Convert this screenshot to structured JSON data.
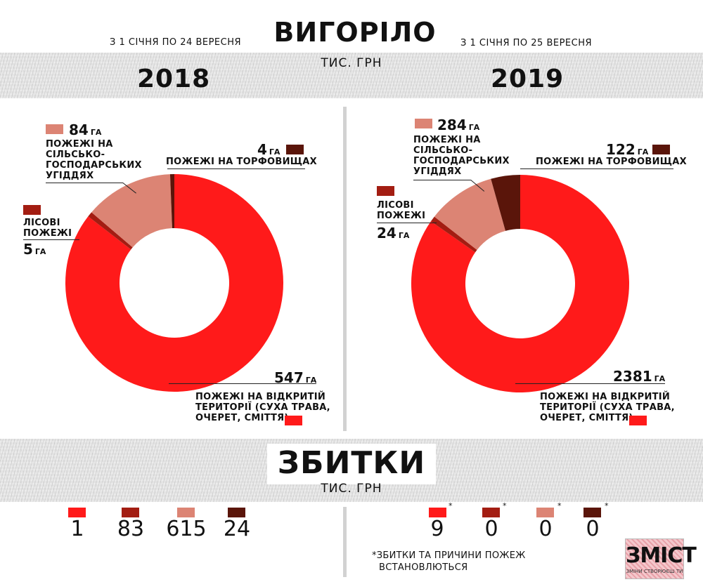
{
  "header": {
    "title": "ВИГОРІЛО",
    "period_2018": "З 1 СІЧНЯ ПО 24 ВЕРЕСНЯ",
    "period_2019": "З 1 СІЧНЯ ПО 25 ВЕРЕСНЯ",
    "unit": "ТИС. ГРН"
  },
  "colors": {
    "open": "#ff1a1a",
    "forest": "#a31d12",
    "agri": "#dc8474",
    "peat": "#5a150a"
  },
  "chart_data": [
    {
      "type": "pie",
      "title": "2018",
      "donut": true,
      "series": [
        {
          "name": "ПОЖЕЖІ НА ВІДКРИТІЙ ТЕРИТОРІЇ (СУХА ТРАВА, ОЧЕРЕТ, СМІТТЯ)",
          "value": 547,
          "unit": "ГА",
          "color": "#ff1a1a"
        },
        {
          "name": "ЛІСОВІ ПОЖЕЖІ",
          "value": 5,
          "unit": "ГА",
          "color": "#a31d12"
        },
        {
          "name": "ПОЖЕЖІ НА СІЛЬСЬКО-ГОСПОДАРСЬКИХ УГІДДЯХ",
          "value": 84,
          "unit": "ГА",
          "color": "#dc8474"
        },
        {
          "name": "ПОЖЕЖІ НА ТОРФОВИЩАХ",
          "value": 4,
          "unit": "ГА",
          "color": "#5a150a"
        }
      ]
    },
    {
      "type": "pie",
      "title": "2019",
      "donut": true,
      "series": [
        {
          "name": "ПОЖЕЖІ НА ВІДКРИТІЙ ТЕРИТОРІЇ (СУХА ТРАВА, ОЧЕРЕТ, СМІТТЯ)",
          "value": 2381,
          "unit": "ГА",
          "color": "#ff1a1a"
        },
        {
          "name": "ЛІСОВІ ПОЖЕЖІ",
          "value": 24,
          "unit": "ГА",
          "color": "#a31d12"
        },
        {
          "name": "ПОЖЕЖІ НА СІЛЬСЬКО-ГОСПОДАРСЬКИХ УГІДДЯХ",
          "value": 284,
          "unit": "ГА",
          "color": "#dc8474"
        },
        {
          "name": "ПОЖЕЖІ НА ТОРФОВИЩАХ",
          "value": 122,
          "unit": "ГА",
          "color": "#5a150a"
        }
      ]
    },
    {
      "type": "table",
      "title": "ЗБИТКИ",
      "unit": "ТИС. ГРН",
      "columns": [
        "open",
        "forest",
        "agri",
        "peat"
      ],
      "rows": [
        {
          "year": "2018",
          "values": [
            1,
            83,
            615,
            24
          ]
        },
        {
          "year": "2019",
          "values": [
            9,
            0,
            0,
            0
          ],
          "marker": "*"
        }
      ]
    }
  ],
  "labels_2018": {
    "open_value": "547",
    "open_text_1": "ПОЖЕЖІ НА ВІДКРИТІЙ",
    "open_text_2": "ТЕРИТОРІЇ (СУХА ТРАВА,",
    "open_text_3": "ОЧЕРЕТ, СМІТТЯ)",
    "forest_value": "5",
    "forest_text_1": "ЛІСОВІ",
    "forest_text_2": "ПОЖЕЖІ",
    "agri_value": "84",
    "agri_text_1": "ПОЖЕЖІ НА",
    "agri_text_2": "СІЛЬСЬКО-",
    "agri_text_3": "ГОСПОДАРСЬКИХ",
    "agri_text_4": "УГІДДЯХ",
    "peat_value": "4",
    "peat_text": "ПОЖЕЖІ НА ТОРФОВИЩАХ",
    "ga": "ГА"
  },
  "labels_2019": {
    "open_value": "2381",
    "open_text_1": "ПОЖЕЖІ НА ВІДКРИТІЙ",
    "open_text_2": "ТЕРИТОРІЇ (СУХА ТРАВА,",
    "open_text_3": "ОЧЕРЕТ, СМІТТЯ)",
    "forest_value": "24",
    "forest_text_1": "ЛІСОВІ",
    "forest_text_2": "ПОЖЕЖІ",
    "agri_value": "284",
    "agri_text_1": "ПОЖЕЖІ НА",
    "agri_text_2": "СІЛЬСЬКО-",
    "agri_text_3": "ГОСПОДАРСЬКИХ",
    "agri_text_4": "УГІДДЯХ",
    "peat_value": "122",
    "peat_text": "ПОЖЕЖІ НА ТОРФОВИЩАХ",
    "ga": "ГА"
  },
  "damage": {
    "title": "ЗБИТКИ",
    "unit": "ТИС. ГРН",
    "values_2018": [
      "1",
      "83",
      "615",
      "24"
    ],
    "values_2019": [
      "9",
      "0",
      "0",
      "0"
    ],
    "star": "*",
    "note_line_1": "*ЗБИТКИ ТА ПРИЧИНИ ПОЖЕЖ",
    "note_line_2": "ВСТАНОВЛЮТЬСЯ"
  },
  "logo": {
    "text": "ЗМІСТ",
    "tagline": "ЗМІНИ СТВОРЮЄШ ТИ"
  }
}
